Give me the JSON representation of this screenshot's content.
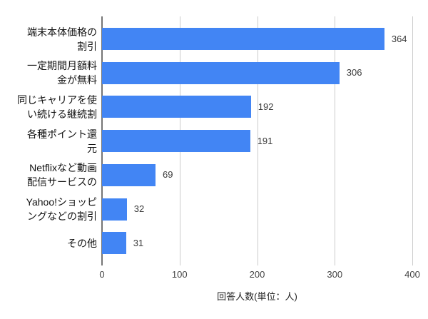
{
  "chart_data": {
    "type": "bar",
    "orientation": "horizontal",
    "title": "",
    "categories": [
      "端末本体価格の割引",
      "一定期間月額料金が無料",
      "同じキャリアを使い続ける継続割",
      "各種ポイント還元",
      "Netflixなど動画配信サービスの",
      "Yahoo!ショッピングなどの割引",
      "その他"
    ],
    "category_display_lines": [
      [
        "端末本体価格の",
        "割引"
      ],
      [
        "一定期間月額料",
        "金が無料"
      ],
      [
        "同じキャリアを使",
        "い続ける継続割"
      ],
      [
        "各種ポイント還",
        "元"
      ],
      [
        "Netflixなど動画",
        "配信サービスの"
      ],
      [
        "Yahoo!ショッピ",
        "ングなどの割引"
      ],
      [
        "その他"
      ]
    ],
    "values": [
      364,
      306,
      192,
      191,
      69,
      32,
      31
    ],
    "value_labels": [
      "364",
      "306",
      "192",
      "191",
      "69",
      "32",
      "31"
    ],
    "xlabel": "回答人数(単位：人)",
    "x_ticks": [
      0,
      100,
      200,
      300,
      400
    ],
    "xlim": [
      0,
      400
    ],
    "grid": true,
    "legend": "none",
    "colors": {
      "bar": "#4285f4",
      "gridline": "#cccccc",
      "axis_line": "#757575",
      "background": "#ffffff",
      "category_text": "#111111",
      "value_text": "#3c3c3c",
      "tick_text": "#444444"
    }
  }
}
